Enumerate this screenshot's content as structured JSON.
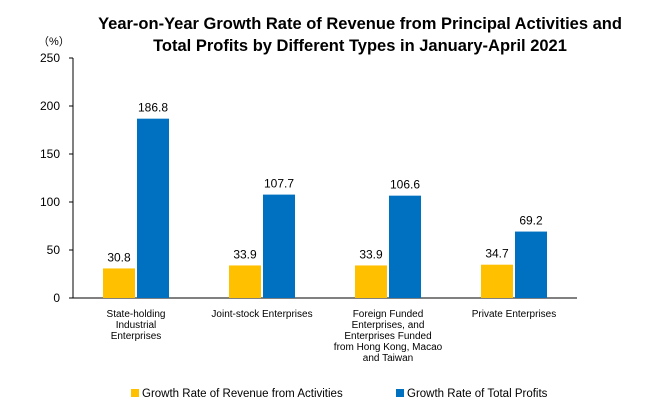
{
  "chart_data": {
    "type": "bar",
    "title_lines": [
      "Year-on-Year Growth Rate of Revenue from Principal Activities and",
      "Total Profits by Different Types in January-April 2021"
    ],
    "y_unit": "（%）",
    "ylim": [
      0,
      250
    ],
    "yticks": [
      0,
      50,
      100,
      150,
      200,
      250
    ],
    "grid": false,
    "legend_position": "bottom",
    "categories": [
      [
        "State-holding",
        "Industrial",
        "Enterprises"
      ],
      [
        "Joint-stock Enterprises"
      ],
      [
        "Foreign Funded",
        "Enterprises, and",
        "Enterprises Funded",
        "from Hong Kong, Macao",
        "and Taiwan"
      ],
      [
        "Private Enterprises"
      ]
    ],
    "series": [
      {
        "name": "Growth Rate of Revenue from Activities",
        "color": "#FFC000",
        "values": [
          30.8,
          33.9,
          33.9,
          34.7
        ],
        "labels": [
          "30.8",
          "33.9",
          "33.9",
          "34.7"
        ]
      },
      {
        "name": "Growth Rate of Total Profits",
        "color": "#0070C0",
        "values": [
          186.8,
          107.7,
          106.6,
          69.2
        ],
        "labels": [
          "186.8",
          "107.7",
          "106.6",
          "69.2"
        ]
      }
    ]
  }
}
